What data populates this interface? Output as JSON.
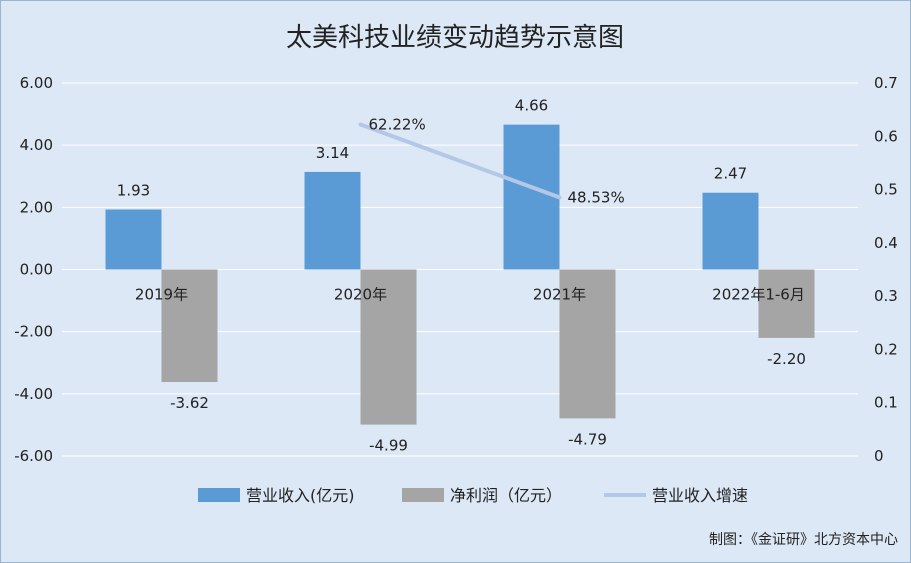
{
  "chart_data": {
    "type": "bar",
    "title": "太美科技业绩变动趋势示意图",
    "categories": [
      "2019年",
      "2020年",
      "2021年",
      "2022年1-6月"
    ],
    "series": [
      {
        "name": "营业收入(亿元)",
        "kind": "bar",
        "axis": "left",
        "color": "#5b9bd5",
        "values": [
          1.93,
          3.14,
          4.66,
          2.47
        ],
        "labels": [
          "1.93",
          "3.14",
          "4.66",
          "2.47"
        ]
      },
      {
        "name": "净利润（亿元）",
        "kind": "bar",
        "axis": "left",
        "color": "#a5a5a5",
        "values": [
          -3.62,
          -4.99,
          -4.79,
          -2.2
        ],
        "labels": [
          "-3.62",
          "-4.99",
          "-4.79",
          "-2.20"
        ]
      },
      {
        "name": "营业收入增速",
        "kind": "line",
        "axis": "right",
        "color": "#b4c7e7",
        "x": [
          "2020年",
          "2021年"
        ],
        "values": [
          0.6222,
          0.4853
        ],
        "labels": [
          "62.22%",
          "48.53%"
        ]
      }
    ],
    "y_left": {
      "ylim": [
        -6,
        6
      ],
      "ticks": [
        "6.00",
        "4.00",
        "2.00",
        "0.00",
        "-2.00",
        "-4.00",
        "-6.00"
      ]
    },
    "y_right": {
      "ylim": [
        0,
        0.7
      ],
      "ticks": [
        "0.7",
        "0.6",
        "0.5",
        "0.4",
        "0.3",
        "0.2",
        "0.1",
        "0"
      ]
    },
    "grid": true,
    "legend_position": "bottom"
  },
  "credit": "制图：《金证研》北方资本中心"
}
